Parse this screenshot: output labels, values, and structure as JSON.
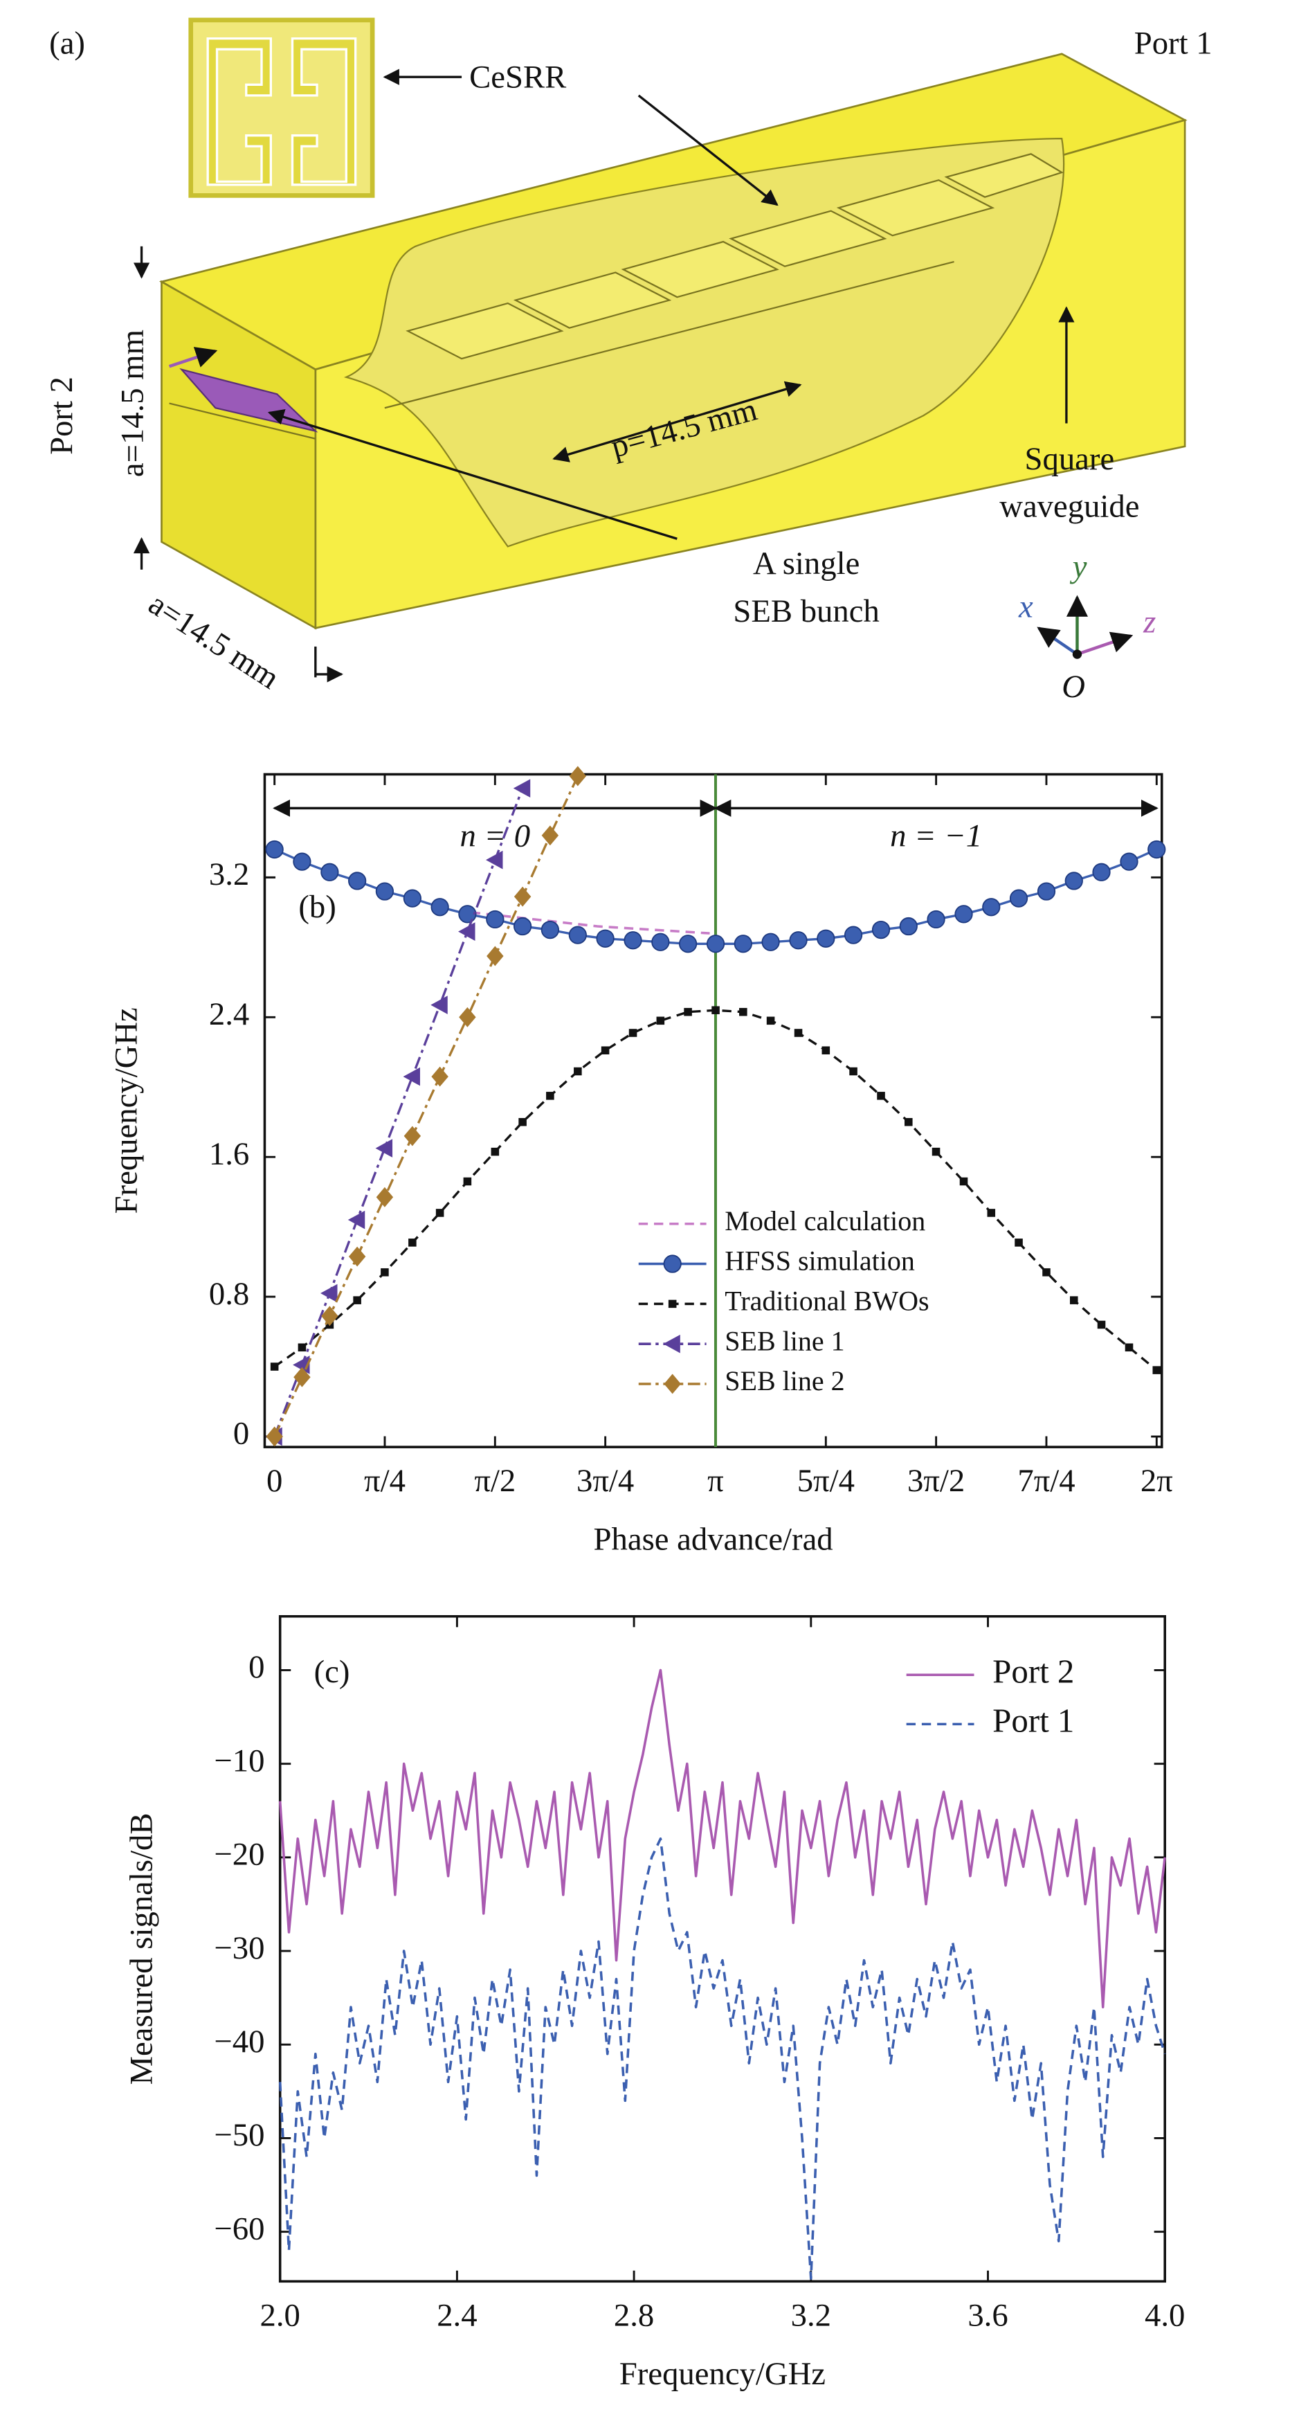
{
  "diagram": {
    "label": "(a)",
    "port1": "Port 1",
    "port2": "Port 2",
    "cesrr": "CeSRR",
    "a_height": "a=14.5 mm",
    "a_width": "a=14.5 mm",
    "period": "p=14.5 mm",
    "bunch": [
      "A single",
      "SEB bunch"
    ],
    "waveguide": [
      "Square",
      "waveguide"
    ],
    "axes": {
      "x": "x",
      "y": "y",
      "z": "z",
      "origin": "O"
    }
  },
  "chart_data": [
    {
      "type": "line",
      "panel_label": "(b)",
      "x_label": "Phase advance/rad",
      "y_label": "Frequency/GHz",
      "xlim": [
        -0.07,
        6.32
      ],
      "ylim": [
        -0.06,
        3.79
      ],
      "xticks": [
        0,
        {
          "value": 0.7854,
          "label": "π/4"
        },
        {
          "value": 1.5708,
          "label": "π/2"
        },
        {
          "value": 2.3562,
          "label": "3π/4"
        },
        {
          "value": 3.1416,
          "label": "π"
        },
        {
          "value": 3.927,
          "label": "5π/4"
        },
        {
          "value": 4.7124,
          "label": "3π/2"
        },
        {
          "value": 5.4978,
          "label": "7π/4"
        },
        {
          "value": 6.2832,
          "label": "2π"
        }
      ],
      "yticks": [
        0,
        0.8,
        1.6,
        2.4,
        3.2
      ],
      "vline": {
        "value": 3.1416,
        "color": "#4a8a3a"
      },
      "annotations": [
        "n = 0",
        "n = −1"
      ],
      "legend": "lower right",
      "series": [
        {
          "name": "Model calculation",
          "color": "#c77cc7",
          "line_style": "dashed",
          "marker": "none",
          "x": [
            1.4,
            2.3,
            3.1
          ],
          "values": [
            3.0,
            2.92,
            2.88
          ]
        },
        {
          "name": "HFSS simulation",
          "color": "#3b5fb0",
          "line_style": "solid",
          "marker": "circle",
          "x": [
            0,
            0.196,
            0.393,
            0.589,
            0.785,
            0.982,
            1.178,
            1.374,
            1.571,
            1.767,
            1.963,
            2.16,
            2.356,
            2.553,
            2.749,
            2.945,
            3.142,
            3.338,
            3.534,
            3.731,
            3.927,
            4.123,
            4.32,
            4.516,
            4.712,
            4.909,
            5.105,
            5.301,
            5.498,
            5.694,
            5.89,
            6.087,
            6.283
          ],
          "values": [
            3.36,
            3.29,
            3.23,
            3.18,
            3.12,
            3.08,
            3.03,
            2.99,
            2.96,
            2.92,
            2.9,
            2.87,
            2.85,
            2.84,
            2.83,
            2.82,
            2.82,
            2.82,
            2.83,
            2.84,
            2.85,
            2.87,
            2.9,
            2.92,
            2.96,
            2.99,
            3.03,
            3.08,
            3.12,
            3.18,
            3.23,
            3.29,
            3.36
          ]
        },
        {
          "name": "Traditional BWOs",
          "color": "#111111",
          "line_style": "dashed",
          "marker": "square",
          "x": [
            0,
            0.196,
            0.393,
            0.589,
            0.785,
            0.982,
            1.178,
            1.374,
            1.571,
            1.767,
            1.963,
            2.16,
            2.356,
            2.553,
            2.749,
            2.945,
            3.142,
            3.338,
            3.534,
            3.731,
            3.927,
            4.123,
            4.32,
            4.516,
            4.712,
            4.909,
            5.105,
            5.301,
            5.498,
            5.694,
            5.89,
            6.087,
            6.283
          ],
          "values": [
            0.4,
            0.51,
            0.64,
            0.78,
            0.94,
            1.11,
            1.28,
            1.46,
            1.63,
            1.8,
            1.95,
            2.09,
            2.21,
            2.31,
            2.38,
            2.43,
            2.44,
            2.43,
            2.38,
            2.31,
            2.21,
            2.09,
            1.95,
            1.8,
            1.63,
            1.46,
            1.28,
            1.11,
            0.94,
            0.78,
            0.64,
            0.51,
            0.38
          ]
        },
        {
          "name": "SEB line 1",
          "color": "#5a3f9b",
          "line_style": "dashdot",
          "marker": "triangle-left",
          "x": [
            0,
            0.196,
            0.393,
            0.589,
            0.785,
            0.982,
            1.178,
            1.374,
            1.571,
            1.767
          ],
          "values": [
            0,
            0.41,
            0.82,
            1.24,
            1.65,
            2.06,
            2.47,
            2.89,
            3.3,
            3.71
          ]
        },
        {
          "name": "SEB line 2",
          "color": "#a87a30",
          "line_style": "dashdot",
          "marker": "diamond",
          "x": [
            0,
            0.196,
            0.393,
            0.589,
            0.785,
            0.982,
            1.178,
            1.374,
            1.571,
            1.767,
            1.963,
            2.16
          ],
          "values": [
            0,
            0.34,
            0.69,
            1.03,
            1.37,
            1.72,
            2.06,
            2.4,
            2.75,
            3.09,
            3.44,
            3.78
          ]
        }
      ]
    },
    {
      "type": "line",
      "panel_label": "(c)",
      "x_label": "Frequency/GHz",
      "y_label": "Measured signals/dB",
      "xlim": [
        2,
        4
      ],
      "ylim": [
        -65.3,
        5.75
      ],
      "xticks": [
        {
          "value": 2,
          "label": "2.0"
        },
        2.4,
        2.8,
        3.2,
        3.6,
        {
          "value": 4,
          "label": "4.0"
        }
      ],
      "yticks": [
        0,
        {
          "value": -10,
          "label": "−10"
        },
        {
          "value": -20,
          "label": "−20"
        },
        {
          "value": -30,
          "label": "−30"
        },
        {
          "value": -40,
          "label": "−40"
        },
        {
          "value": -50,
          "label": "−50"
        },
        {
          "value": -60,
          "label": "−60"
        }
      ],
      "legend": "upper right",
      "x": [
        2,
        2.02,
        2.04,
        2.06,
        2.08,
        2.1,
        2.12,
        2.14,
        2.16,
        2.18,
        2.2,
        2.22,
        2.24,
        2.26,
        2.28,
        2.3,
        2.32,
        2.34,
        2.36,
        2.38,
        2.4,
        2.42,
        2.44,
        2.46,
        2.48,
        2.5,
        2.52,
        2.54,
        2.56,
        2.58,
        2.6,
        2.62,
        2.64,
        2.66,
        2.68,
        2.7,
        2.72,
        2.74,
        2.76,
        2.78,
        2.8,
        2.82,
        2.84,
        2.86,
        2.88,
        2.9,
        2.92,
        2.94,
        2.96,
        2.98,
        3,
        3.02,
        3.04,
        3.06,
        3.08,
        3.1,
        3.12,
        3.14,
        3.16,
        3.18,
        3.2,
        3.22,
        3.24,
        3.26,
        3.28,
        3.3,
        3.32,
        3.34,
        3.36,
        3.38,
        3.4,
        3.42,
        3.44,
        3.46,
        3.48,
        3.5,
        3.52,
        3.54,
        3.56,
        3.58,
        3.6,
        3.62,
        3.64,
        3.66,
        3.68,
        3.7,
        3.72,
        3.74,
        3.76,
        3.78,
        3.8,
        3.82,
        3.84,
        3.86,
        3.88,
        3.9,
        3.92,
        3.94,
        3.96,
        3.98,
        4
      ],
      "series": [
        {
          "name": "Port 2",
          "color": "#a95ab0",
          "line_style": "solid",
          "marker": "none",
          "values": [
            -14,
            -28,
            -18,
            -25,
            -16,
            -22,
            -14,
            -26,
            -17,
            -21,
            -13,
            -19,
            -12,
            -24,
            -10,
            -15,
            -11,
            -18,
            -14,
            -22,
            -13,
            -17,
            -11,
            -26,
            -15,
            -20,
            -12,
            -16,
            -21,
            -14,
            -19,
            -13,
            -24,
            -12,
            -17,
            -11,
            -20,
            -14,
            -31,
            -18,
            -13,
            -9,
            -4,
            0,
            -8,
            -15,
            -10,
            -22,
            -13,
            -19,
            -12,
            -24,
            -14,
            -18,
            -11,
            -16,
            -21,
            -13,
            -27,
            -15,
            -19,
            -14,
            -22,
            -16,
            -12,
            -20,
            -15,
            -24,
            -14,
            -18,
            -13,
            -21,
            -16,
            -25,
            -17,
            -13,
            -18,
            -14,
            -22,
            -15,
            -20,
            -16,
            -23,
            -17,
            -21,
            -15,
            -19,
            -24,
            -17,
            -22,
            -16,
            -25,
            -19,
            -36,
            -20,
            -23,
            -18,
            -26,
            -21,
            -28,
            -20
          ]
        },
        {
          "name": "Port 1",
          "color": "#3b5fb0",
          "line_style": "dashed",
          "marker": "none",
          "values": [
            -44,
            -62,
            -45,
            -52,
            -41,
            -50,
            -43,
            -47,
            -36,
            -42,
            -38,
            -44,
            -33,
            -39,
            -30,
            -36,
            -31,
            -40,
            -34,
            -44,
            -37,
            -48,
            -35,
            -41,
            -33,
            -38,
            -32,
            -45,
            -34,
            -54,
            -36,
            -40,
            -32,
            -38,
            -30,
            -35,
            -29,
            -41,
            -33,
            -46,
            -30,
            -24,
            -20,
            -18,
            -26,
            -30,
            -28,
            -36,
            -30,
            -34,
            -31,
            -38,
            -33,
            -42,
            -35,
            -40,
            -34,
            -44,
            -38,
            -50,
            -65,
            -42,
            -36,
            -40,
            -33,
            -38,
            -31,
            -36,
            -32,
            -42,
            -35,
            -39,
            -33,
            -37,
            -31,
            -35,
            -29,
            -34,
            -32,
            -40,
            -36,
            -44,
            -38,
            -46,
            -40,
            -48,
            -42,
            -55,
            -61,
            -45,
            -38,
            -44,
            -36,
            -52,
            -39,
            -43,
            -36,
            -40,
            -33,
            -38,
            -41
          ]
        }
      ]
    }
  ]
}
